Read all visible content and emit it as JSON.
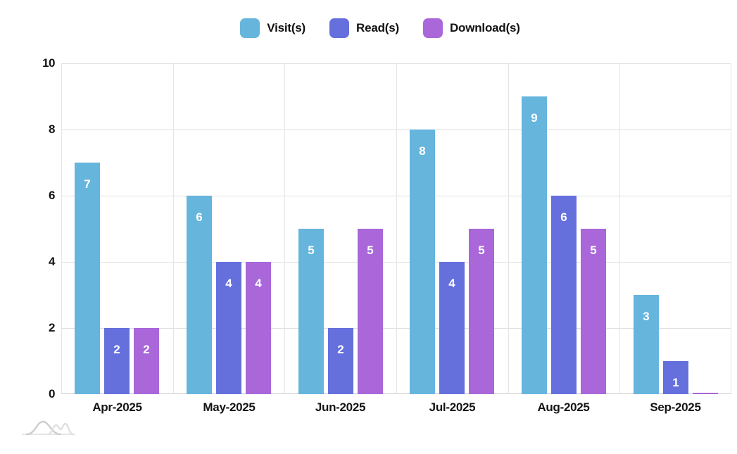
{
  "chart_data": {
    "type": "bar",
    "categories": [
      "Apr-2025",
      "May-2025",
      "Jun-2025",
      "Jul-2025",
      "Aug-2025",
      "Sep-2025"
    ],
    "series": [
      {
        "name": "Visit(s)",
        "color": "#66b5dd",
        "values": [
          7,
          6,
          5,
          8,
          9,
          3
        ]
      },
      {
        "name": "Read(s)",
        "color": "#6570dc",
        "values": [
          2,
          4,
          2,
          4,
          6,
          1
        ]
      },
      {
        "name": "Download(s)",
        "color": "#a967da",
        "values": [
          2,
          4,
          5,
          5,
          5,
          0
        ]
      }
    ],
    "title": "",
    "xlabel": "",
    "ylabel": "",
    "ylim": [
      0,
      10
    ],
    "yticks": [
      0,
      2,
      4,
      6,
      8,
      10
    ],
    "grid": true,
    "legend_position": "top-center",
    "value_labels": "white numbers inside bars near top"
  },
  "style": {
    "background": "#ffffff",
    "grid_color": "#dedede",
    "baseline_color": "#c9c9c9",
    "axis_text_color": "#141414",
    "value_label_color": "#ffffff",
    "watermark_color": "#d2d2d2"
  },
  "watermark": {
    "name": "wave-curves-logo"
  }
}
